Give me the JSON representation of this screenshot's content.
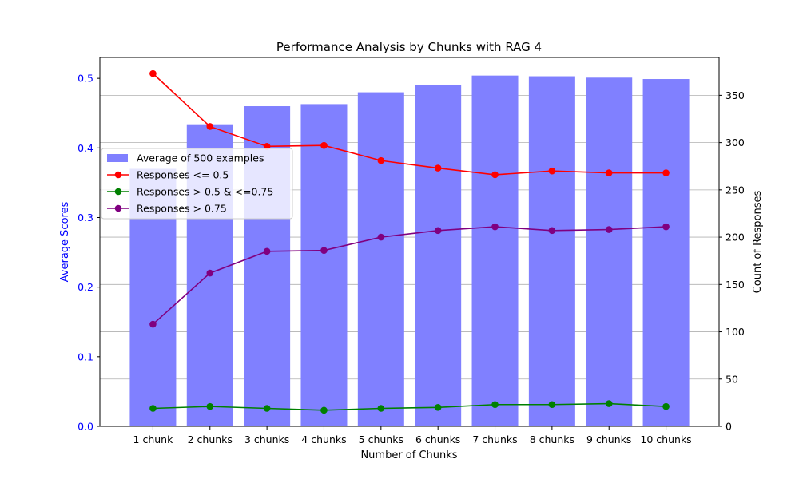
{
  "chart_data": {
    "type": "bar",
    "title": "Performance Analysis by Chunks with RAG 4",
    "xlabel": "Number of Chunks",
    "ylabel_left": "Average Scores",
    "ylabel_right": "Count of Responses",
    "categories": [
      "1 chunk",
      "2 chunks",
      "3 chunks",
      "4 chunks",
      "5 chunks",
      "6 chunks",
      "7 chunks",
      "8 chunks",
      "9 chunks",
      "10 chunks"
    ],
    "ylim_left": [
      0,
      0.53
    ],
    "ylim_right": [
      0,
      390
    ],
    "yticks_left": [
      "0.0",
      "0.1",
      "0.2",
      "0.3",
      "0.4",
      "0.5"
    ],
    "yticks_right": [
      "0",
      "50",
      "100",
      "150",
      "200",
      "250",
      "300",
      "350"
    ],
    "grid": "right-axis horizontal",
    "legend_position": "upper-left",
    "bar_series": {
      "name": "Average of 500 examples",
      "axis": "left",
      "color": "#8080ff",
      "values": [
        0.37,
        0.434,
        0.46,
        0.463,
        0.48,
        0.491,
        0.504,
        0.503,
        0.501,
        0.499
      ]
    },
    "line_series": [
      {
        "name": "Responses <= 0.5",
        "axis": "right",
        "color": "#ff0000",
        "values": [
          373,
          317,
          296,
          297,
          281,
          273,
          266,
          270,
          268,
          268
        ]
      },
      {
        "name": "Responses > 0.5 & <=0.75",
        "axis": "right",
        "color": "#008000",
        "values": [
          19,
          21,
          19,
          17,
          19,
          20,
          23,
          23,
          24,
          21
        ]
      },
      {
        "name": "Responses > 0.75",
        "axis": "right",
        "color": "#800080",
        "values": [
          108,
          162,
          185,
          186,
          200,
          207,
          211,
          207,
          208,
          211
        ]
      }
    ],
    "left_axis_color": "#0000ff"
  }
}
